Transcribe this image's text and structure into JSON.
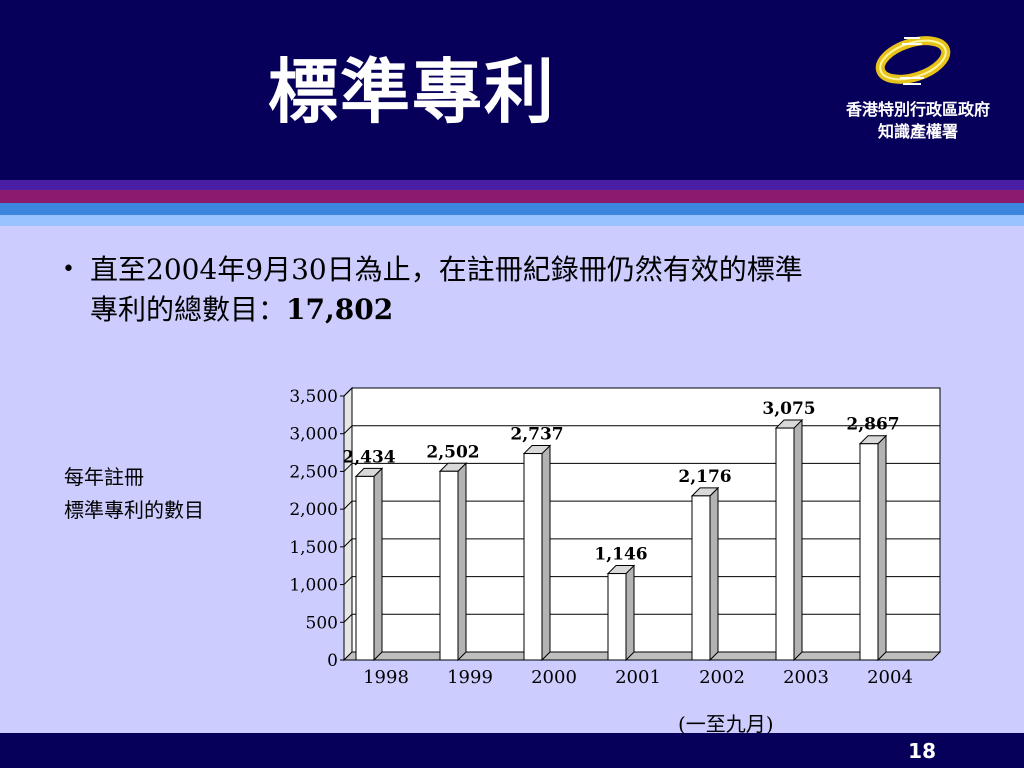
{
  "slide": {
    "title": "標準專利",
    "logo": {
      "line1": "香港特別行政區政府",
      "line2": "知識產權署"
    },
    "bullet": {
      "line1": "直至2004年9月30日為止，在註冊紀錄冊仍然有效的標準",
      "line2_prefix": "專利的總數目：",
      "line2_value": "17,802"
    },
    "side_label_line1": "每年註冊",
    "side_label_line2": "標準專利的數目",
    "note": "(一至九月)",
    "page_number": "18"
  },
  "colors": {
    "header_bg": "#07005a",
    "body_bg": "#ccccff",
    "stripes": [
      "#4a1fa6",
      "#8c1a6e",
      "#3d86e0",
      "#99c3ff"
    ],
    "logo_ring": "#e6c21a"
  },
  "chart_data": {
    "type": "bar",
    "categories": [
      "1998",
      "1999",
      "2000",
      "2001",
      "2002",
      "2003",
      "2004"
    ],
    "values": [
      2434,
      2502,
      2737,
      1146,
      2176,
      3075,
      2867
    ],
    "data_labels": [
      "2,434",
      "2,502",
      "2,737",
      "1,146",
      "2,176",
      "3,075",
      "2,867"
    ],
    "yticks": [
      "0",
      "500",
      "1,000",
      "1,500",
      "2,000",
      "2,500",
      "3,000",
      "3,500"
    ],
    "ylim": [
      0,
      3500
    ],
    "grid": true,
    "bar_color": "#ffffff"
  }
}
